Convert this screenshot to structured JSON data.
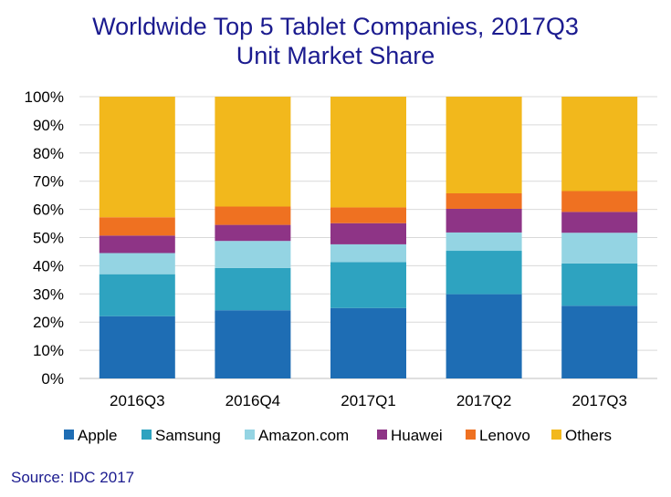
{
  "chart_data": {
    "type": "bar",
    "stacked": true,
    "title": "Worldwide Top 5 Tablet Companies, 2017Q3",
    "subtitle": "Unit Market Share",
    "categories": [
      "2016Q3",
      "2016Q4",
      "2017Q1",
      "2017Q2",
      "2017Q3"
    ],
    "series": [
      {
        "name": "Apple",
        "color": "#1e6db4",
        "values": [
          22.1,
          24.2,
          25.0,
          29.9,
          25.8
        ]
      },
      {
        "name": "Samsung",
        "color": "#2ea3c0",
        "values": [
          14.9,
          15.0,
          16.3,
          15.4,
          15.0
        ]
      },
      {
        "name": "Amazon.com",
        "color": "#94d4e3",
        "values": [
          7.5,
          9.6,
          6.3,
          6.5,
          10.9
        ]
      },
      {
        "name": "Huawei",
        "color": "#8e3486",
        "values": [
          6.2,
          5.7,
          7.5,
          8.4,
          7.4
        ]
      },
      {
        "name": "Lenovo",
        "color": "#ef7121",
        "values": [
          6.5,
          6.5,
          5.6,
          5.5,
          7.4
        ]
      },
      {
        "name": "Others",
        "color": "#f2b81c",
        "values": [
          42.8,
          39.0,
          39.3,
          34.3,
          33.5
        ]
      }
    ],
    "ylim": [
      0,
      100
    ],
    "yticks": [
      "0%",
      "10%",
      "20%",
      "30%",
      "40%",
      "50%",
      "60%",
      "70%",
      "80%",
      "90%",
      "100%"
    ],
    "grid": true,
    "legend": "bottom"
  },
  "footer": {
    "source": "Source: IDC 2017"
  }
}
